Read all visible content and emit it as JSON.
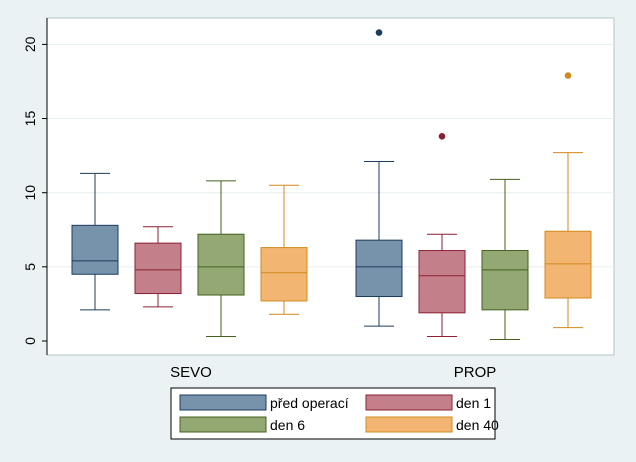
{
  "chart_data": {
    "type": "box",
    "title": "",
    "xlabel": "",
    "ylabel": "",
    "ylim": [
      0,
      22
    ],
    "yticks": [
      0,
      5,
      10,
      15,
      20
    ],
    "categories": [
      "SEVO",
      "PROP"
    ],
    "series": [
      {
        "name": "před operací",
        "color": "#7792ab",
        "stroke": "#1c3c5c",
        "boxes": [
          {
            "min": 2.1,
            "q1": 4.5,
            "median": 5.4,
            "q3": 7.8,
            "max": 11.3,
            "outliers": []
          },
          {
            "min": 1.0,
            "q1": 3.0,
            "median": 5.0,
            "q3": 6.8,
            "max": 12.1,
            "outliers": [
              20.8
            ]
          }
        ]
      },
      {
        "name": "den 1",
        "color": "#c4808a",
        "stroke": "#8b2032",
        "boxes": [
          {
            "min": 2.3,
            "q1": 3.2,
            "median": 4.8,
            "q3": 6.6,
            "max": 7.7,
            "outliers": []
          },
          {
            "min": 0.3,
            "q1": 1.9,
            "median": 4.4,
            "q3": 6.1,
            "max": 7.2,
            "outliers": [
              13.8
            ]
          }
        ]
      },
      {
        "name": "den 6",
        "color": "#94a874",
        "stroke": "#44601e",
        "boxes": [
          {
            "min": 0.3,
            "q1": 3.1,
            "median": 5.0,
            "q3": 7.2,
            "max": 10.8,
            "outliers": []
          },
          {
            "min": 0.1,
            "q1": 2.1,
            "median": 4.8,
            "q3": 6.1,
            "max": 10.9,
            "outliers": []
          }
        ]
      },
      {
        "name": "den 40",
        "color": "#f3b672",
        "stroke": "#d08a1c",
        "boxes": [
          {
            "min": 1.8,
            "q1": 2.7,
            "median": 4.6,
            "q3": 6.3,
            "max": 10.5,
            "outliers": []
          },
          {
            "min": 0.9,
            "q1": 2.9,
            "median": 5.2,
            "q3": 7.4,
            "max": 12.7,
            "outliers": [
              17.9
            ]
          }
        ]
      }
    ],
    "legend": {
      "position": "bottom",
      "columns": 2
    }
  }
}
